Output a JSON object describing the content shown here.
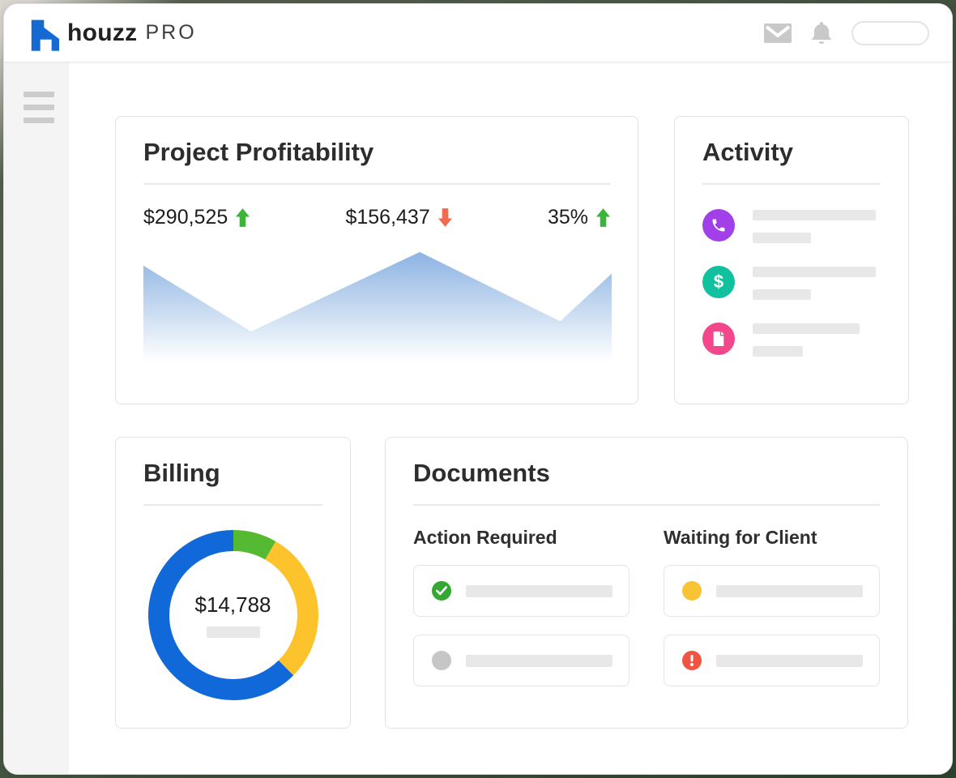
{
  "topbar": {
    "brand_name": "houzz",
    "brand_suffix": "PRO",
    "brand_color": "#1569d3",
    "icons": [
      "mail-icon",
      "notifications-icon",
      "account-pill"
    ]
  },
  "sidebar": {
    "menu_icon": "hamburger-icon"
  },
  "cards": {
    "profitability": {
      "title": "Project Profitability",
      "stats": [
        {
          "value": "$290,525",
          "trend": "up",
          "color": "#3cb43a"
        },
        {
          "value": "$156,437",
          "trend": "down",
          "color": "#f26a50"
        },
        {
          "value": "35%",
          "trend": "up",
          "color": "#3cb43a"
        }
      ],
      "chart_data": {
        "type": "area",
        "x": [
          0,
          0.23,
          0.59,
          0.89,
          1
        ],
        "y": [
          0.88,
          0.3,
          1.0,
          0.39,
          0.81
        ],
        "fill_top": "#8cb3e2",
        "fill_bottom": "#ffffff",
        "title": "",
        "xlabel": "",
        "ylabel": "",
        "note": "decorative trend area, no axes or labels shown"
      }
    },
    "activity": {
      "title": "Activity",
      "items": [
        {
          "icon": "phone-icon",
          "color": "#a13fe8"
        },
        {
          "icon": "dollar-icon",
          "color": "#0fc19e",
          "glyph": "$"
        },
        {
          "icon": "document-icon",
          "color": "#f2478a"
        }
      ]
    },
    "billing": {
      "title": "Billing",
      "chart_data": {
        "type": "pie",
        "donut": true,
        "center_label": "$14,788",
        "slices": [
          {
            "name": "green slice",
            "percent": 8.3,
            "color": "#55ba31"
          },
          {
            "name": "yellow slice",
            "percent": 29.2,
            "color": "#fcc32d"
          },
          {
            "name": "blue slice",
            "percent": 62.5,
            "color": "#1168d8"
          }
        ]
      }
    },
    "documents": {
      "title": "Documents",
      "columns": [
        {
          "header": "Action Required",
          "rows": [
            {
              "status": "complete",
              "icon": "check-icon",
              "color": "#34a832"
            },
            {
              "status": "inactive",
              "icon": "circle-icon",
              "color": "#c6c6c6"
            }
          ]
        },
        {
          "header": "Waiting for Client",
          "rows": [
            {
              "status": "pending",
              "icon": "circle-icon",
              "color": "#f8c335"
            },
            {
              "status": "alert",
              "icon": "exclamation-icon",
              "color": "#f05442"
            }
          ]
        }
      ]
    }
  }
}
